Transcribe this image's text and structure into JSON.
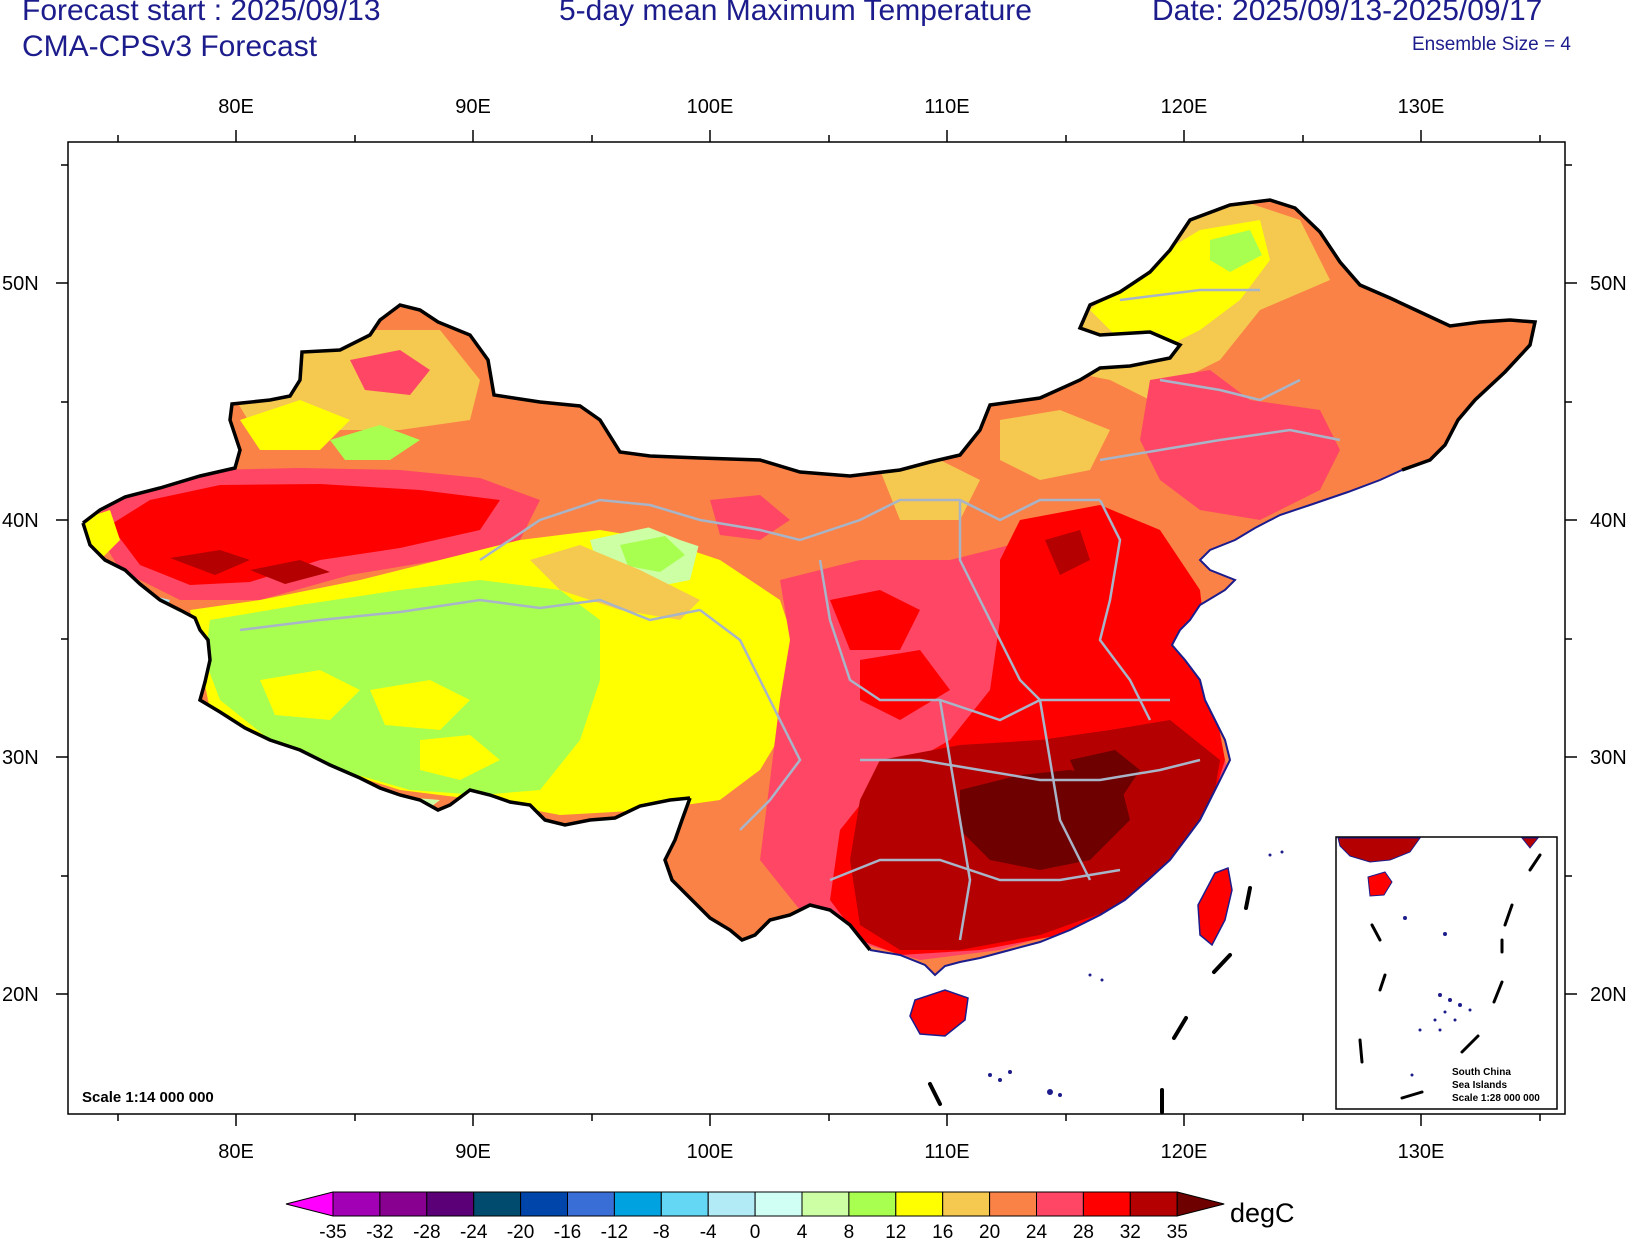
{
  "header": {
    "forecast_start": "Forecast start : 2025/09/13",
    "model": "CMA-CPSv3 Forecast",
    "title": "5-day mean Maximum Temperature",
    "date_range": "Date: 2025/09/13-2025/09/17",
    "ensemble": "Ensemble Size = 4"
  },
  "map": {
    "lon_ticks": [
      "80E",
      "90E",
      "100E",
      "110E",
      "120E",
      "130E"
    ],
    "lat_ticks": [
      "50N",
      "40N",
      "30N",
      "20N"
    ],
    "scale_label": "Scale 1:14 000 000",
    "inset_labels": [
      "South China",
      "Sea Islands",
      "Scale 1:28 000 000"
    ]
  },
  "colorbar": {
    "unit": "degC",
    "labels": [
      "-35",
      "-32",
      "-28",
      "-24",
      "-20",
      "-16",
      "-12",
      "-8",
      "-4",
      "0",
      "4",
      "8",
      "12",
      "16",
      "20",
      "24",
      "28",
      "32",
      "35"
    ],
    "colors": [
      "#ff00ff",
      "#a200b4",
      "#88008f",
      "#5c0078",
      "#004b6e",
      "#0046aa",
      "#3a6ed7",
      "#00a3e0",
      "#64d7f5",
      "#b2ebf6",
      "#d0fff4",
      "#cdffa5",
      "#a8ff50",
      "#ffff00",
      "#f5c850",
      "#fa8246",
      "#ff4664",
      "#ff0000",
      "#b40000",
      "#6e0000"
    ]
  }
}
